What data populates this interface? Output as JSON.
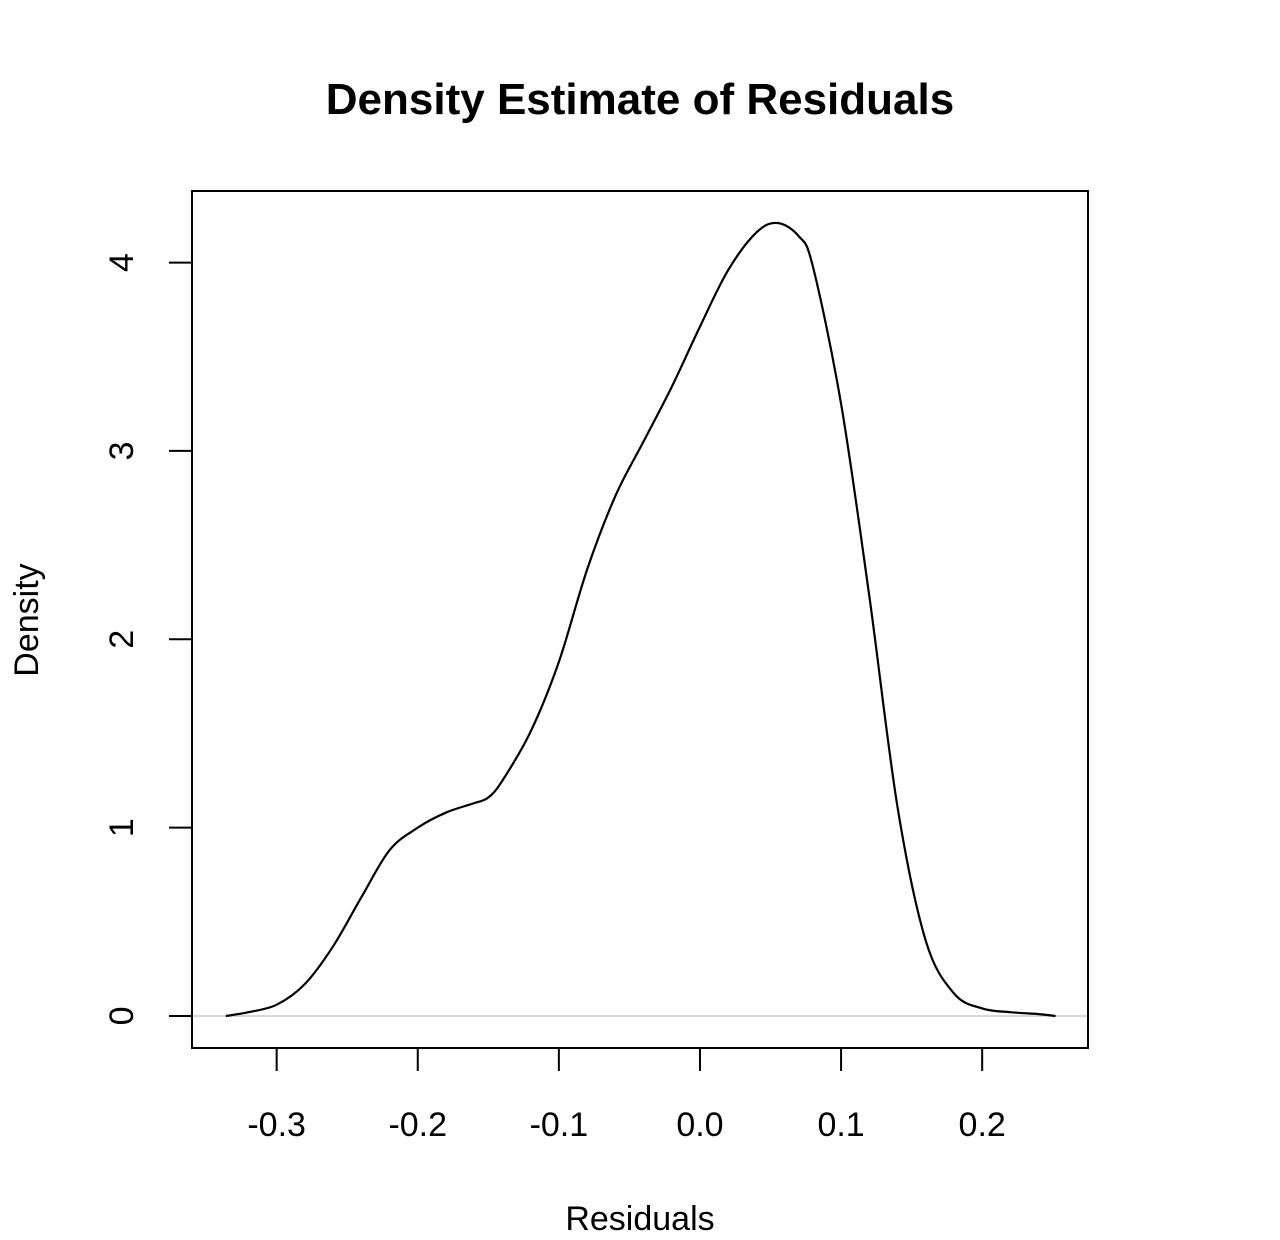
{
  "chart_data": {
    "type": "line",
    "title": "Density Estimate of Residuals",
    "xlabel": "Residuals",
    "ylabel": "Density",
    "xlim": [
      -0.36,
      0.275
    ],
    "ylim": [
      -0.17,
      4.38
    ],
    "x_ticks": [
      -0.3,
      -0.2,
      -0.1,
      0.0,
      0.1,
      0.2
    ],
    "x_tick_labels": [
      "-0.3",
      "-0.2",
      "-0.1",
      "0.0",
      "0.1",
      "0.2"
    ],
    "y_ticks": [
      0,
      1,
      2,
      3,
      4
    ],
    "y_tick_labels": [
      "0",
      "1",
      "2",
      "3",
      "4"
    ],
    "grid": false,
    "baseline": 0,
    "colors": {
      "line": "#000000",
      "baseline": "#cccccc",
      "frame": "#000000"
    },
    "series": [
      {
        "x": [
          -0.336,
          -0.32,
          -0.3,
          -0.28,
          -0.26,
          -0.24,
          -0.22,
          -0.2,
          -0.18,
          -0.16,
          -0.15,
          -0.14,
          -0.12,
          -0.1,
          -0.08,
          -0.06,
          -0.04,
          -0.02,
          0.0,
          0.02,
          0.04,
          0.055,
          0.07,
          0.08,
          0.1,
          0.12,
          0.14,
          0.16,
          0.18,
          0.2,
          0.22,
          0.24,
          0.252
        ],
        "y": [
          0.0,
          0.02,
          0.06,
          0.17,
          0.37,
          0.63,
          0.88,
          1.0,
          1.08,
          1.13,
          1.16,
          1.25,
          1.51,
          1.88,
          2.37,
          2.76,
          3.05,
          3.34,
          3.66,
          3.96,
          4.16,
          4.21,
          4.14,
          3.98,
          3.25,
          2.23,
          1.11,
          0.4,
          0.12,
          0.04,
          0.02,
          0.01,
          0.0
        ]
      }
    ]
  }
}
